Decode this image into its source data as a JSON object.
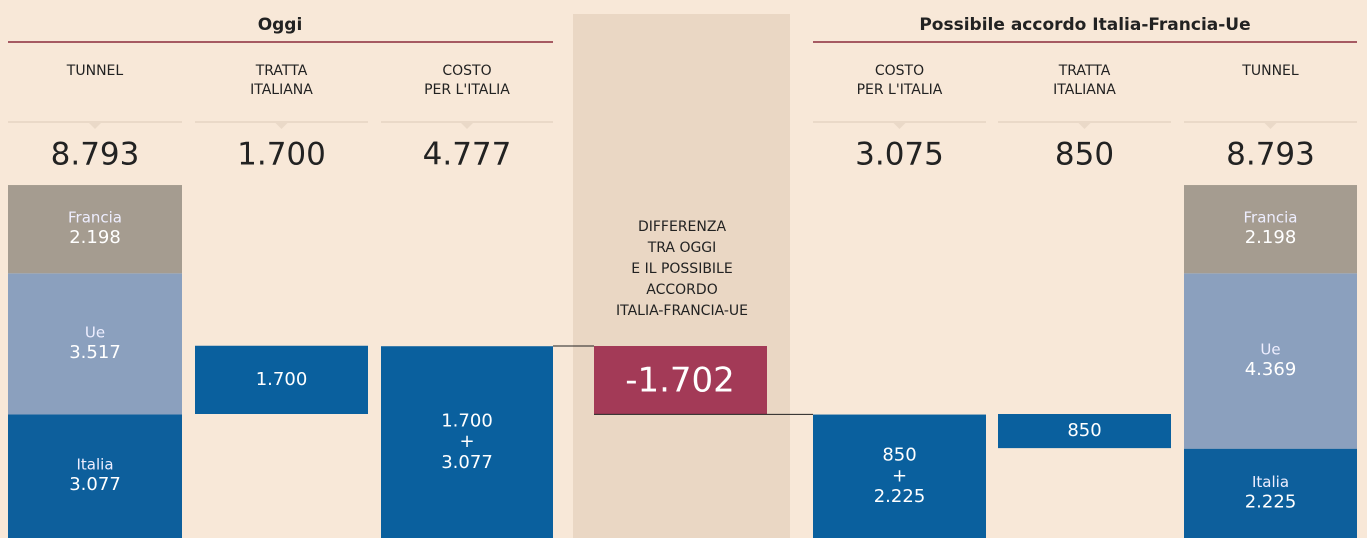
{
  "sections": [
    {
      "title": "Oggi"
    },
    {
      "title": "Possibile accordo Italia-Francia-Ue"
    }
  ],
  "columns": [
    {
      "header": [
        "TUNNEL"
      ],
      "total": {
        "value": 8793,
        "label": "8.793"
      },
      "segments": [
        {
          "name": "Francia",
          "value": 2198,
          "label": "2.198"
        },
        {
          "name": "Ue",
          "value": 3517,
          "label": "3.517"
        },
        {
          "name": "Italia",
          "value": 3077,
          "label": "3.077"
        }
      ]
    },
    {
      "header": [
        "TRATTA",
        "ITALIANA"
      ],
      "total": {
        "value": 1700,
        "label": "1.700"
      },
      "block_lines": [
        "1.700"
      ]
    },
    {
      "header": [
        "COSTO",
        "PER L'ITALIA"
      ],
      "total": {
        "value": 4777,
        "label": "4.777"
      },
      "block_lines": [
        "1.700",
        "+",
        "3.077"
      ]
    },
    {
      "header": [
        "COSTO",
        "PER L'ITALIA"
      ],
      "total": {
        "value": 3075,
        "label": "3.075"
      },
      "block_lines": [
        "850",
        "+",
        "2.225"
      ]
    },
    {
      "header": [
        "TRATTA",
        "ITALIANA"
      ],
      "total": {
        "value": 850,
        "label": "850"
      },
      "block_lines": [
        "850"
      ]
    },
    {
      "header": [
        "TUNNEL"
      ],
      "total": {
        "value": 8793,
        "label": "8.793"
      },
      "segments": [
        {
          "name": "Francia",
          "value": 2198,
          "label": "2.198"
        },
        {
          "name": "Ue",
          "value": 4369,
          "label": "4.369"
        },
        {
          "name": "Italia",
          "value": 2225,
          "label": "2.225"
        }
      ]
    }
  ],
  "difference": {
    "text": [
      "DIFFERENZA",
      "TRA OGGI",
      "E IL POSSIBILE",
      "ACCORDO",
      "ITALIA-FRANCIA-UE"
    ],
    "value": -1702,
    "label": "-1.702"
  }
}
